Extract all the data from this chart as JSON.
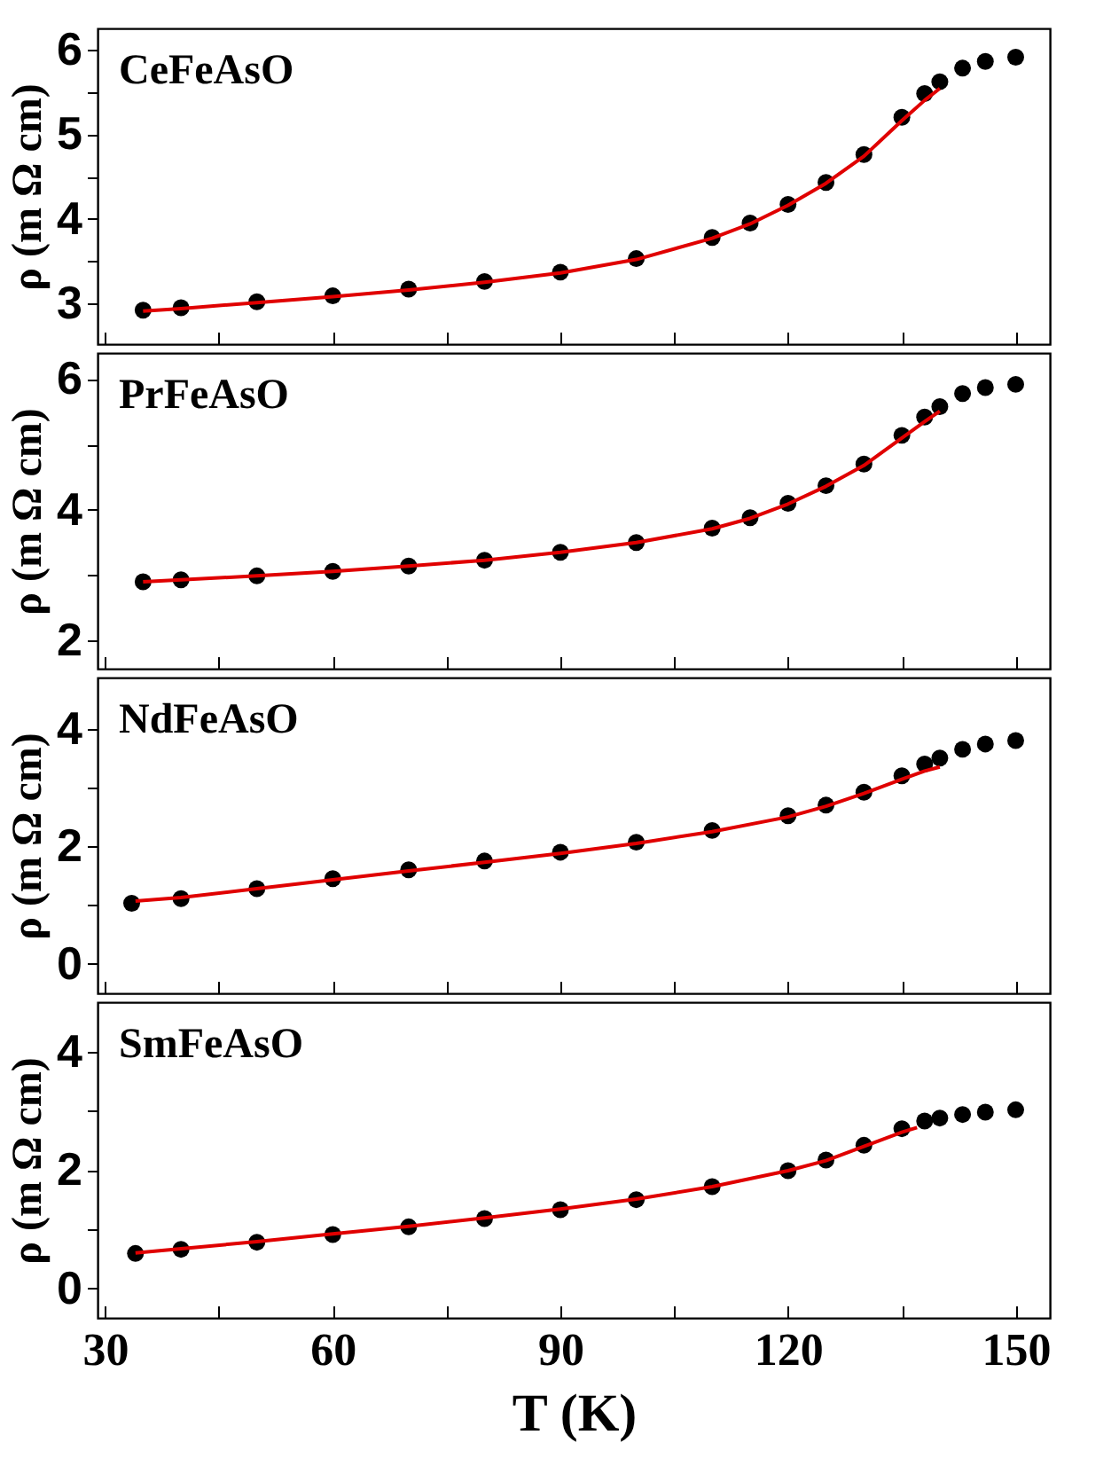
{
  "chart_data": [
    {
      "type": "scatter",
      "ylabel": "ρ (m Ω cm)",
      "annotations": [
        "CeFeAsO"
      ],
      "xlim": [
        29,
        154.5
      ],
      "ylim": [
        2.52,
        6.25
      ],
      "tick_labels": "y",
      "legend": false,
      "marker": "circle",
      "xticks": [
        30,
        {
          "value": 45,
          "label": null
        },
        60,
        {
          "value": 75,
          "label": null
        },
        90,
        {
          "value": 105,
          "label": null
        },
        120,
        {
          "value": 135,
          "label": null
        },
        150
      ],
      "yticks": [
        3,
        {
          "value": 3.5,
          "label": null
        },
        4,
        {
          "value": 4.5,
          "label": null
        },
        5,
        {
          "value": 5.5,
          "label": null
        },
        6
      ],
      "series": [
        {
          "color": "#000000",
          "x": [
            35,
            40,
            50,
            60,
            70,
            80,
            90,
            100,
            110,
            115,
            120,
            125,
            130,
            135,
            138,
            140,
            143,
            146,
            150
          ],
          "values": [
            2.92,
            2.95,
            3.02,
            3.09,
            3.17,
            3.26,
            3.37,
            3.53,
            3.78,
            3.95,
            4.17,
            4.43,
            4.76,
            5.2,
            5.48,
            5.62,
            5.78,
            5.86,
            5.91
          ]
        },
        {
          "type": "line",
          "marker": "none",
          "color": "#e00000",
          "x": [
            35,
            40,
            50,
            60,
            70,
            80,
            90,
            100,
            110,
            115,
            120,
            125,
            130,
            135,
            138,
            140
          ],
          "values": [
            2.91,
            2.94,
            3.01,
            3.08,
            3.16,
            3.25,
            3.36,
            3.52,
            3.77,
            3.94,
            4.16,
            4.42,
            4.74,
            5.16,
            5.4,
            5.54
          ]
        }
      ]
    },
    {
      "type": "scatter",
      "ylabel": "ρ (m Ω cm)",
      "annotations": [
        "PrFeAsO"
      ],
      "xlim": [
        29,
        154.5
      ],
      "ylim": [
        1.57,
        6.4
      ],
      "tick_labels": "y",
      "legend": false,
      "marker": "circle",
      "xticks": [
        30,
        {
          "value": 45,
          "label": null
        },
        60,
        {
          "value": 75,
          "label": null
        },
        90,
        {
          "value": 105,
          "label": null
        },
        120,
        {
          "value": 135,
          "label": null
        },
        150
      ],
      "yticks": [
        2,
        {
          "value": 3,
          "label": null
        },
        4,
        {
          "value": 5,
          "label": null
        },
        6
      ],
      "series": [
        {
          "color": "#000000",
          "x": [
            35,
            40,
            50,
            60,
            70,
            80,
            90,
            100,
            110,
            115,
            120,
            125,
            130,
            135,
            138,
            140,
            143,
            146,
            150
          ],
          "values": [
            2.9,
            2.93,
            2.99,
            3.06,
            3.14,
            3.23,
            3.35,
            3.5,
            3.72,
            3.88,
            4.1,
            4.37,
            4.7,
            5.14,
            5.42,
            5.58,
            5.78,
            5.87,
            5.92
          ]
        },
        {
          "type": "line",
          "marker": "none",
          "color": "#e00000",
          "x": [
            35,
            40,
            50,
            60,
            70,
            80,
            90,
            100,
            110,
            115,
            120,
            125,
            130,
            135,
            138,
            140
          ],
          "values": [
            2.9,
            2.93,
            2.99,
            3.06,
            3.14,
            3.23,
            3.35,
            3.5,
            3.71,
            3.87,
            4.09,
            4.36,
            4.68,
            5.1,
            5.35,
            5.51
          ]
        }
      ]
    },
    {
      "type": "scatter",
      "ylabel": "ρ (m Ω cm)",
      "annotations": [
        "NdFeAsO"
      ],
      "xlim": [
        29,
        154.5
      ],
      "ylim": [
        -0.5,
        4.87
      ],
      "tick_labels": "y",
      "legend": false,
      "marker": "circle",
      "xticks": [
        30,
        {
          "value": 45,
          "label": null
        },
        60,
        {
          "value": 75,
          "label": null
        },
        90,
        {
          "value": 105,
          "label": null
        },
        120,
        {
          "value": 135,
          "label": null
        },
        150
      ],
      "yticks": [
        0,
        {
          "value": 1,
          "label": null
        },
        2,
        {
          "value": 3,
          "label": null
        },
        4
      ],
      "series": [
        {
          "color": "#000000",
          "x": [
            33.5,
            40,
            50,
            60,
            70,
            80,
            90,
            100,
            110,
            120,
            125,
            130,
            135,
            138,
            140,
            143,
            146,
            150
          ],
          "values": [
            1.03,
            1.11,
            1.28,
            1.45,
            1.6,
            1.75,
            1.9,
            2.07,
            2.27,
            2.52,
            2.7,
            2.92,
            3.2,
            3.4,
            3.5,
            3.65,
            3.74,
            3.8
          ]
        },
        {
          "type": "line",
          "marker": "none",
          "color": "#e00000",
          "x": [
            34,
            40,
            50,
            60,
            70,
            80,
            90,
            100,
            110,
            120,
            125,
            130,
            135,
            138,
            140
          ],
          "values": [
            1.07,
            1.13,
            1.28,
            1.43,
            1.58,
            1.73,
            1.88,
            2.05,
            2.25,
            2.5,
            2.68,
            2.9,
            3.14,
            3.28,
            3.35
          ]
        }
      ]
    },
    {
      "type": "scatter",
      "ylabel": "ρ (m Ω cm)",
      "xlabel": "T (K)",
      "annotations": [
        "SmFeAsO"
      ],
      "xlim": [
        29,
        154.5
      ],
      "ylim": [
        -0.5,
        4.84
      ],
      "legend": false,
      "marker": "circle",
      "xticks": [
        30,
        {
          "value": 45,
          "label": null
        },
        60,
        {
          "value": 75,
          "label": null
        },
        90,
        {
          "value": 105,
          "label": null
        },
        120,
        {
          "value": 135,
          "label": null
        },
        150
      ],
      "yticks": [
        0,
        {
          "value": 1,
          "label": null
        },
        2,
        {
          "value": 3,
          "label": null
        },
        4
      ],
      "series": [
        {
          "color": "#000000",
          "x": [
            34,
            40,
            50,
            60,
            70,
            80,
            90,
            100,
            110,
            120,
            125,
            130,
            135,
            138,
            140,
            143,
            146,
            150
          ],
          "values": [
            0.59,
            0.66,
            0.78,
            0.91,
            1.04,
            1.18,
            1.33,
            1.5,
            1.72,
            1.99,
            2.17,
            2.42,
            2.7,
            2.83,
            2.88,
            2.94,
            2.98,
            3.02
          ]
        },
        {
          "type": "line",
          "marker": "none",
          "color": "#e00000",
          "x": [
            34,
            40,
            50,
            60,
            70,
            80,
            90,
            100,
            110,
            120,
            125,
            130,
            135,
            137
          ],
          "values": [
            0.6,
            0.67,
            0.79,
            0.92,
            1.05,
            1.19,
            1.34,
            1.51,
            1.72,
            1.99,
            2.16,
            2.4,
            2.64,
            2.72
          ]
        }
      ]
    }
  ]
}
